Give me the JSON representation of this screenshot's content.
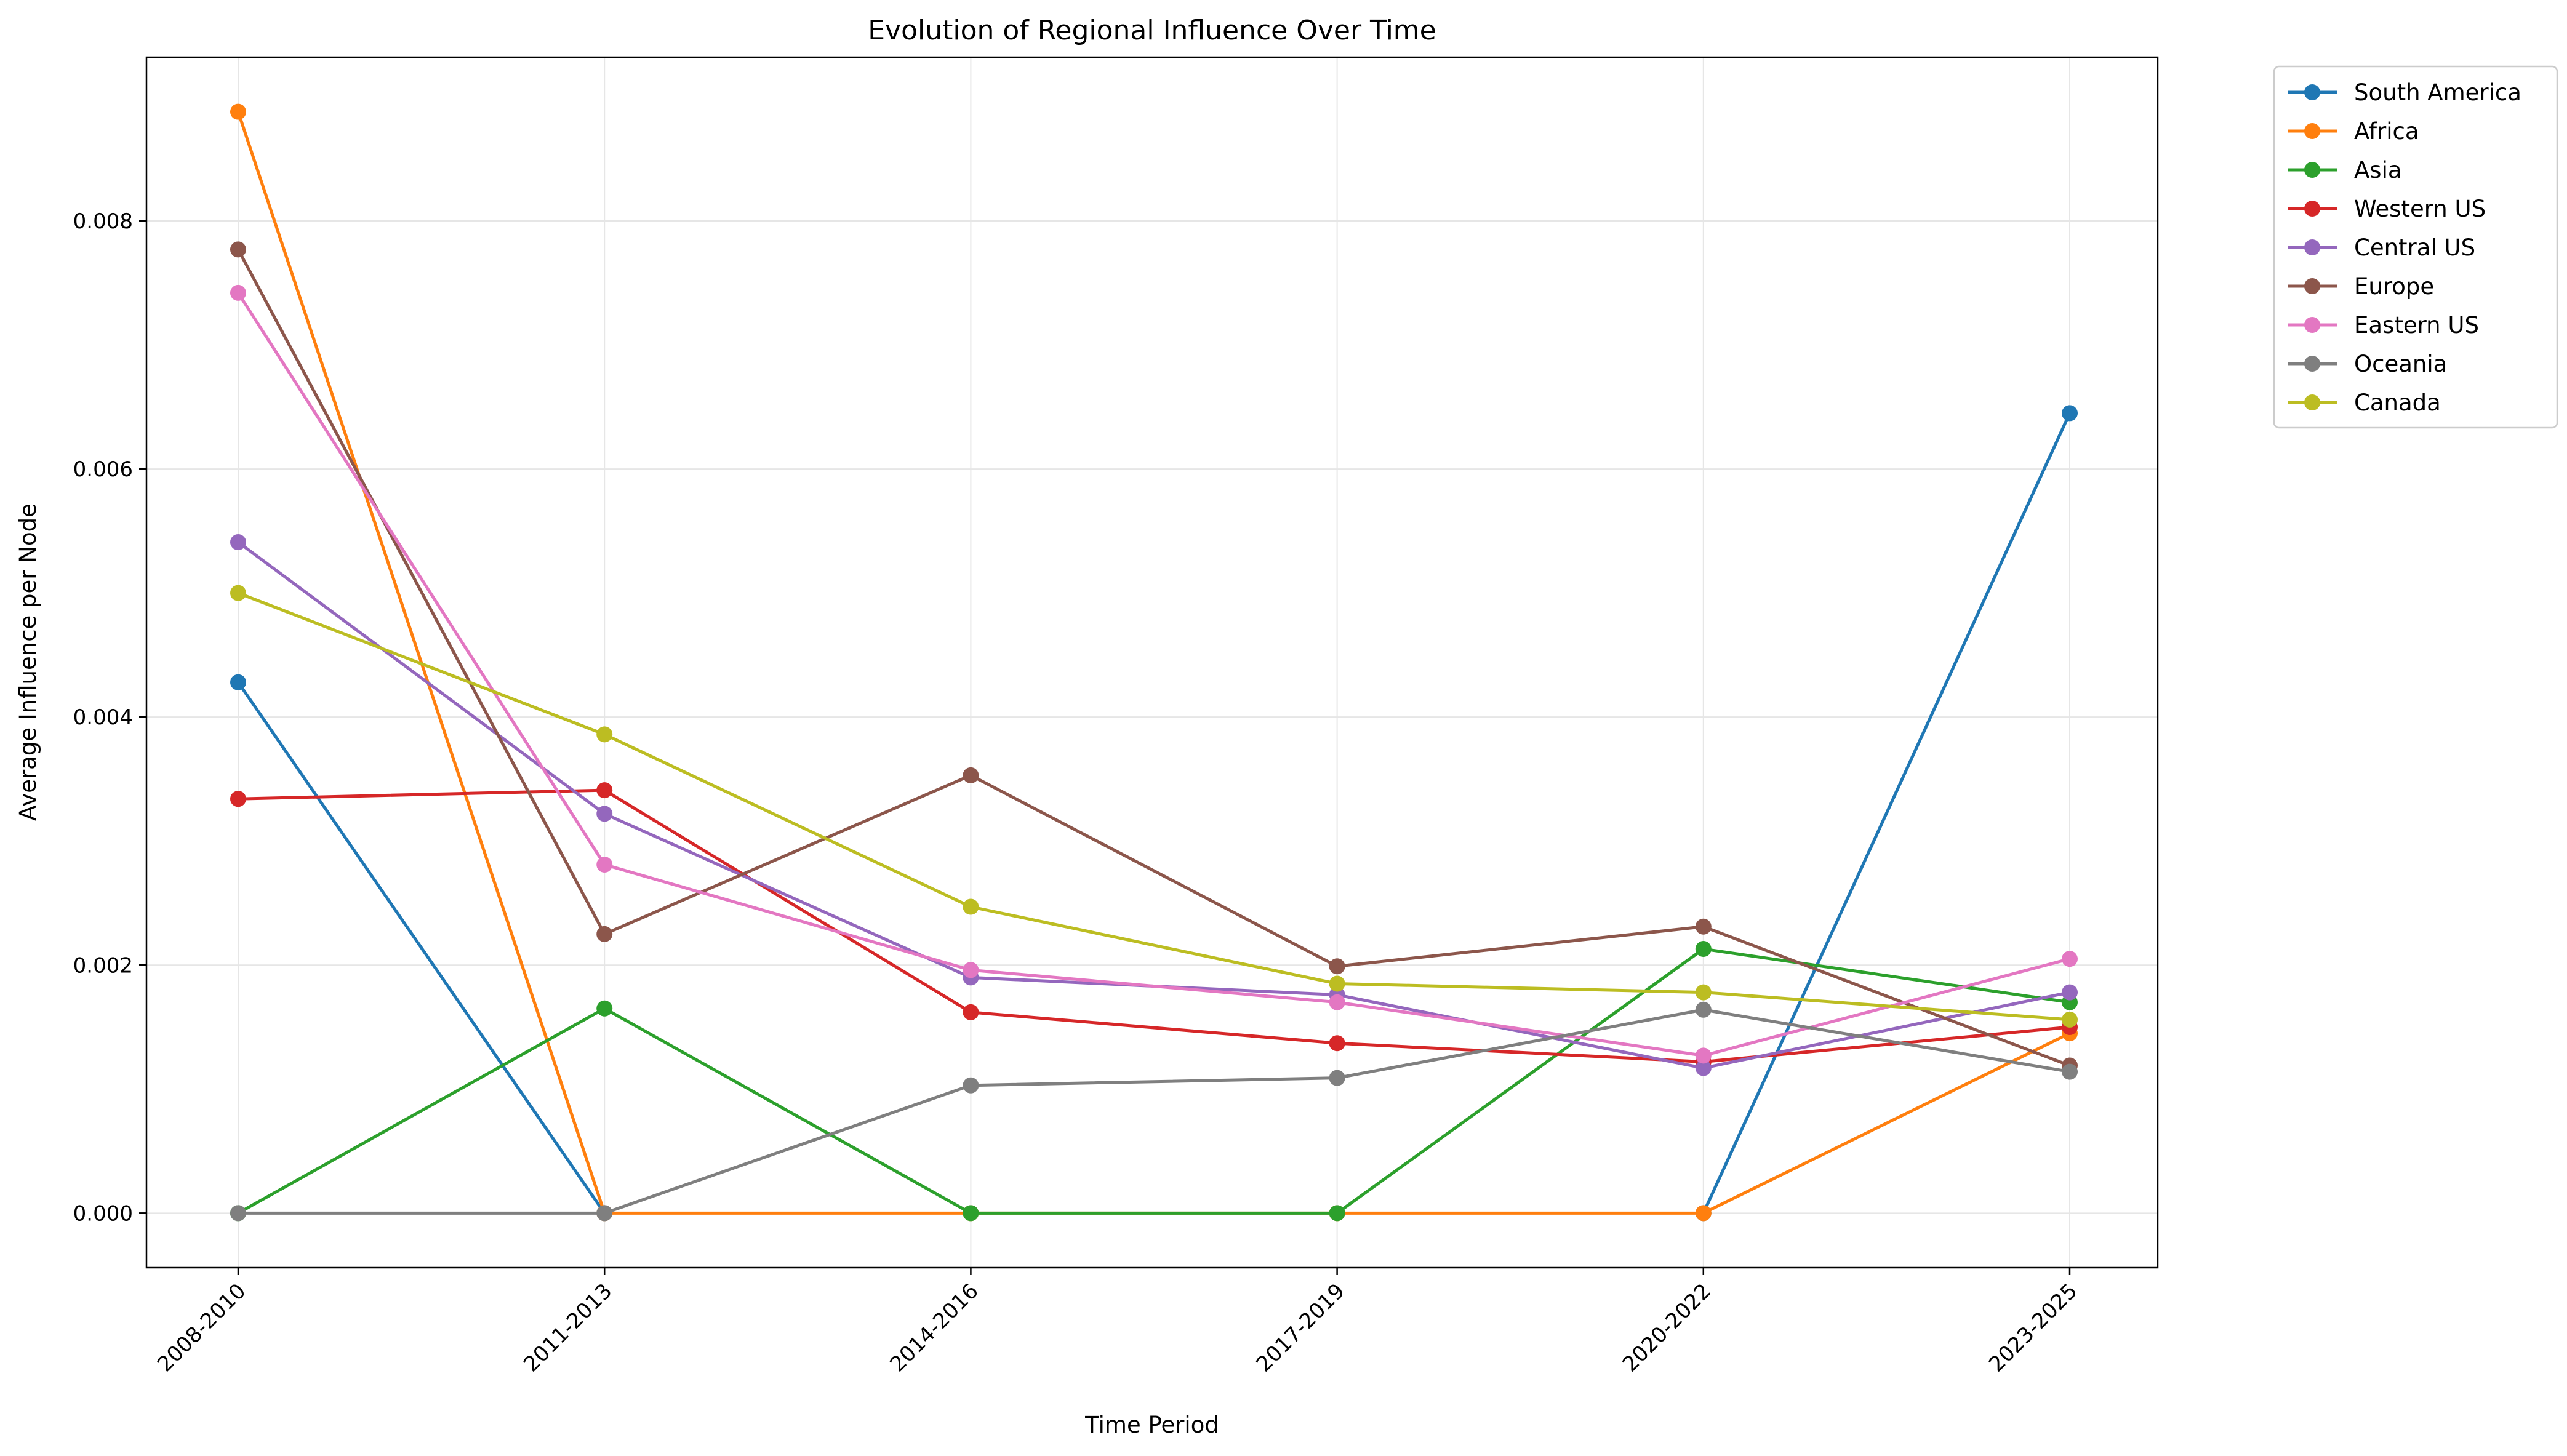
{
  "chart_data": {
    "type": "line",
    "title": "Evolution of Regional Influence Over Time",
    "xlabel": "Time Period",
    "ylabel": "Average Influence per Node",
    "categories": [
      "2008-2010",
      "2011-2013",
      "2014-2016",
      "2017-2019",
      "2020-2022",
      "2023-2025"
    ],
    "ylim": [
      -0.00044,
      0.00932
    ],
    "yticks": [
      0.0,
      0.002,
      0.004,
      0.006,
      0.008
    ],
    "ytick_labels": [
      "0.000",
      "0.002",
      "0.004",
      "0.006",
      "0.008"
    ],
    "grid": true,
    "legend_position": "outside upper right",
    "series": [
      {
        "name": "South America",
        "color": "#1f77b4",
        "values": [
          0.00428,
          0.0,
          null,
          null,
          0.0,
          0.00645
        ]
      },
      {
        "name": "Africa",
        "color": "#ff7f0e",
        "values": [
          0.00888,
          0.0,
          0.0,
          0.0,
          0.0,
          0.00145
        ]
      },
      {
        "name": "Asia",
        "color": "#2ca02c",
        "values": [
          0.0,
          0.00165,
          0.0,
          0.0,
          0.00213,
          0.0017
        ]
      },
      {
        "name": "Western US",
        "color": "#d62728",
        "values": [
          0.00334,
          0.00341,
          0.00162,
          0.00137,
          0.00122,
          0.0015
        ]
      },
      {
        "name": "Central US",
        "color": "#9467bd",
        "values": [
          0.00541,
          0.00322,
          0.0019,
          0.00176,
          0.00117,
          0.00178
        ]
      },
      {
        "name": "Europe",
        "color": "#8c564b",
        "values": [
          0.00777,
          0.00225,
          0.00353,
          0.00199,
          0.00231,
          0.00119
        ]
      },
      {
        "name": "Eastern US",
        "color": "#e377c2",
        "values": [
          0.00742,
          0.00281,
          0.00196,
          0.0017,
          0.00127,
          0.00205
        ]
      },
      {
        "name": "Oceania",
        "color": "#7f7f7f",
        "values": [
          0.0,
          0.0,
          0.00103,
          0.00109,
          0.00164,
          0.00114
        ]
      },
      {
        "name": "Canada",
        "color": "#bcbd22",
        "values": [
          0.005,
          0.00386,
          0.00247,
          0.00185,
          0.00178,
          0.00156
        ]
      }
    ]
  }
}
